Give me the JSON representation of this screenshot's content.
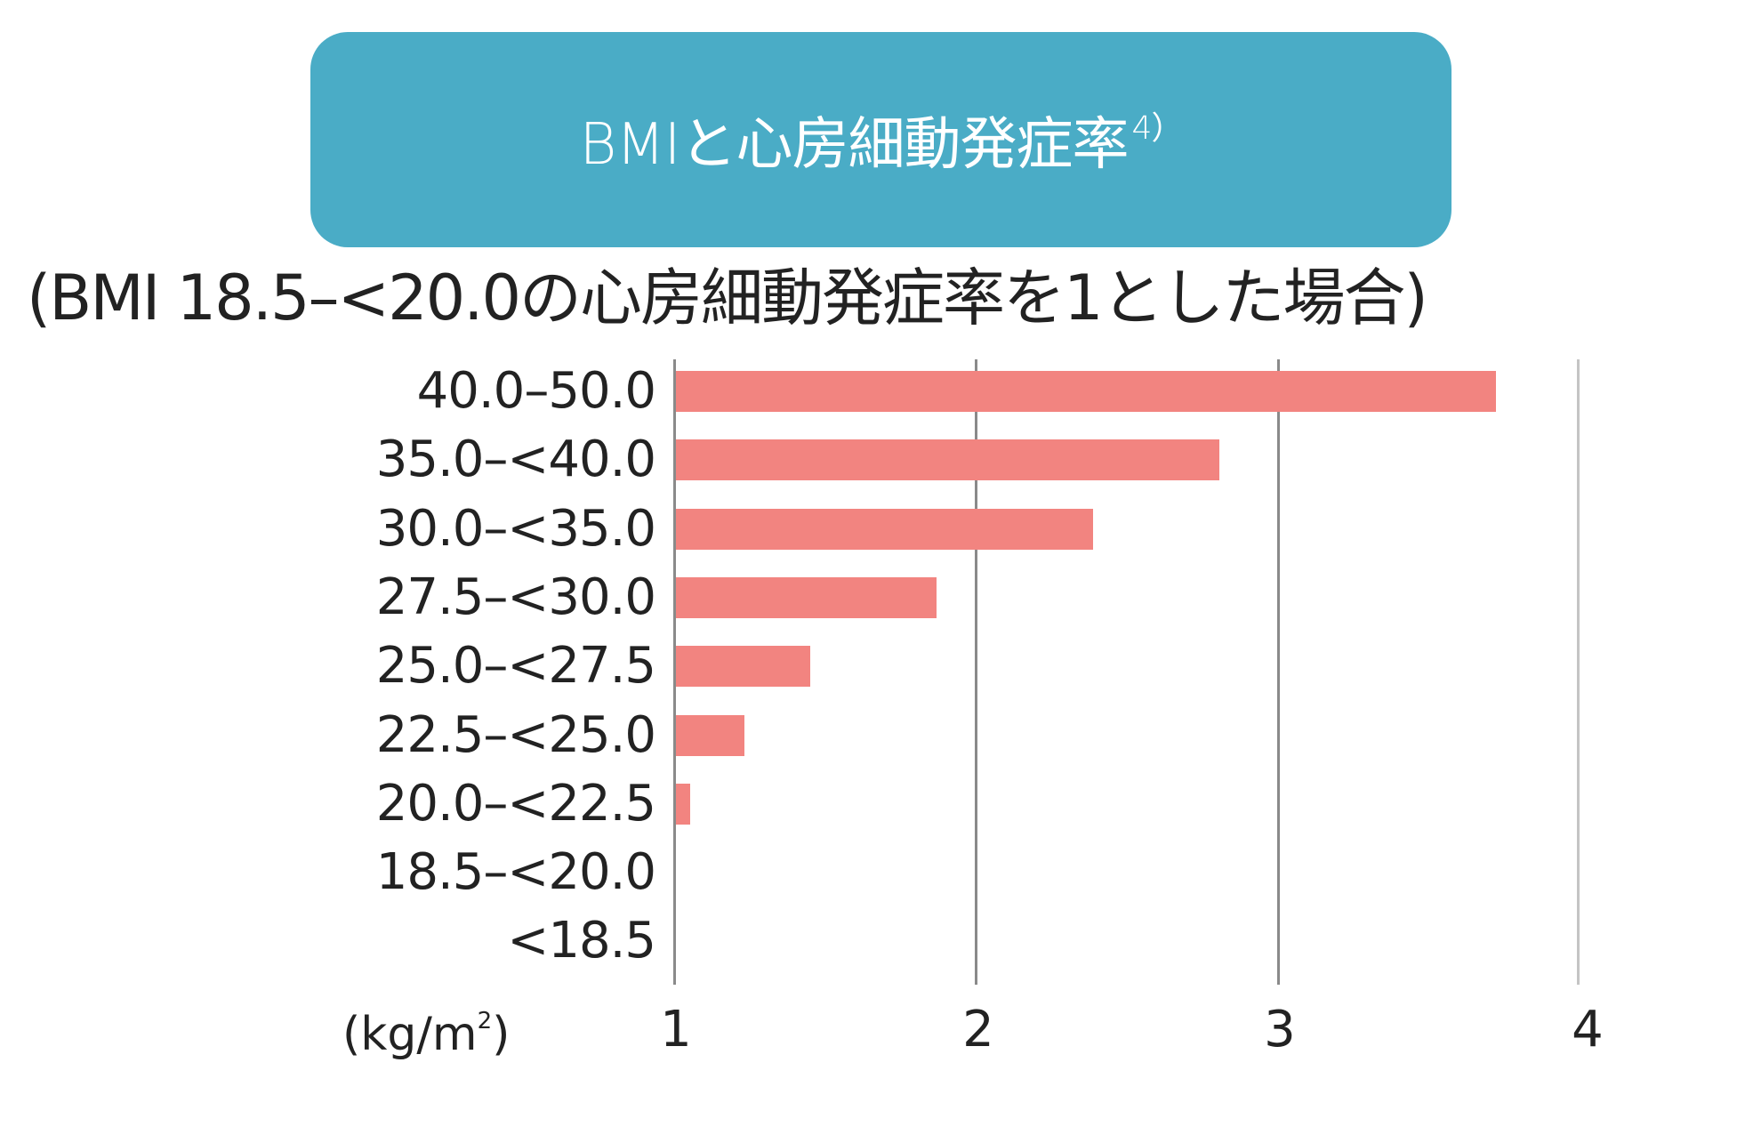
{
  "title": {
    "text": "BMIと心房細動発症率",
    "superscript": "4）",
    "background_color": "#4aacc6"
  },
  "subtitle": "(BMI 18.5–<20.0の心房細動発症率を1とした場合)",
  "chart_data": {
    "type": "bar",
    "orientation": "horizontal",
    "title": "BMIと心房細動発症率4）",
    "subtitle": "(BMI 18.5–<20.0の心房細動発症率を1とした場合)",
    "categories": [
      "40.0–50.0",
      "35.0–<40.0",
      "30.0–<35.0",
      "27.5–<30.0",
      "25.0–<27.5",
      "22.5–<25.0",
      "20.0–<22.5",
      "18.5–<20.0",
      "<18.5"
    ],
    "values": [
      3.73,
      2.81,
      2.39,
      1.87,
      1.45,
      1.23,
      1.05,
      1.0,
      1.0
    ],
    "xlabel": "",
    "ylabel": "(kg/m²)",
    "xlim": [
      1,
      4
    ],
    "xticks": [
      "1",
      "2",
      "3",
      "4"
    ],
    "grid": true,
    "bar_color": "#f28480",
    "legend": null
  },
  "axis": {
    "unit_label": "(kg/m",
    "unit_sup": "2",
    "unit_close": ")",
    "ticks": [
      "1",
      "2",
      "3",
      "4"
    ]
  },
  "rows": [
    {
      "label": "40.0–50.0"
    },
    {
      "label": "35.0–<40.0"
    },
    {
      "label": "30.0–<35.0"
    },
    {
      "label": "27.5–<30.0"
    },
    {
      "label": "25.0–<27.5"
    },
    {
      "label": "22.5–<25.0"
    },
    {
      "label": "20.0–<22.5"
    },
    {
      "label": "18.5–<20.0"
    },
    {
      "label": "<18.5"
    }
  ]
}
